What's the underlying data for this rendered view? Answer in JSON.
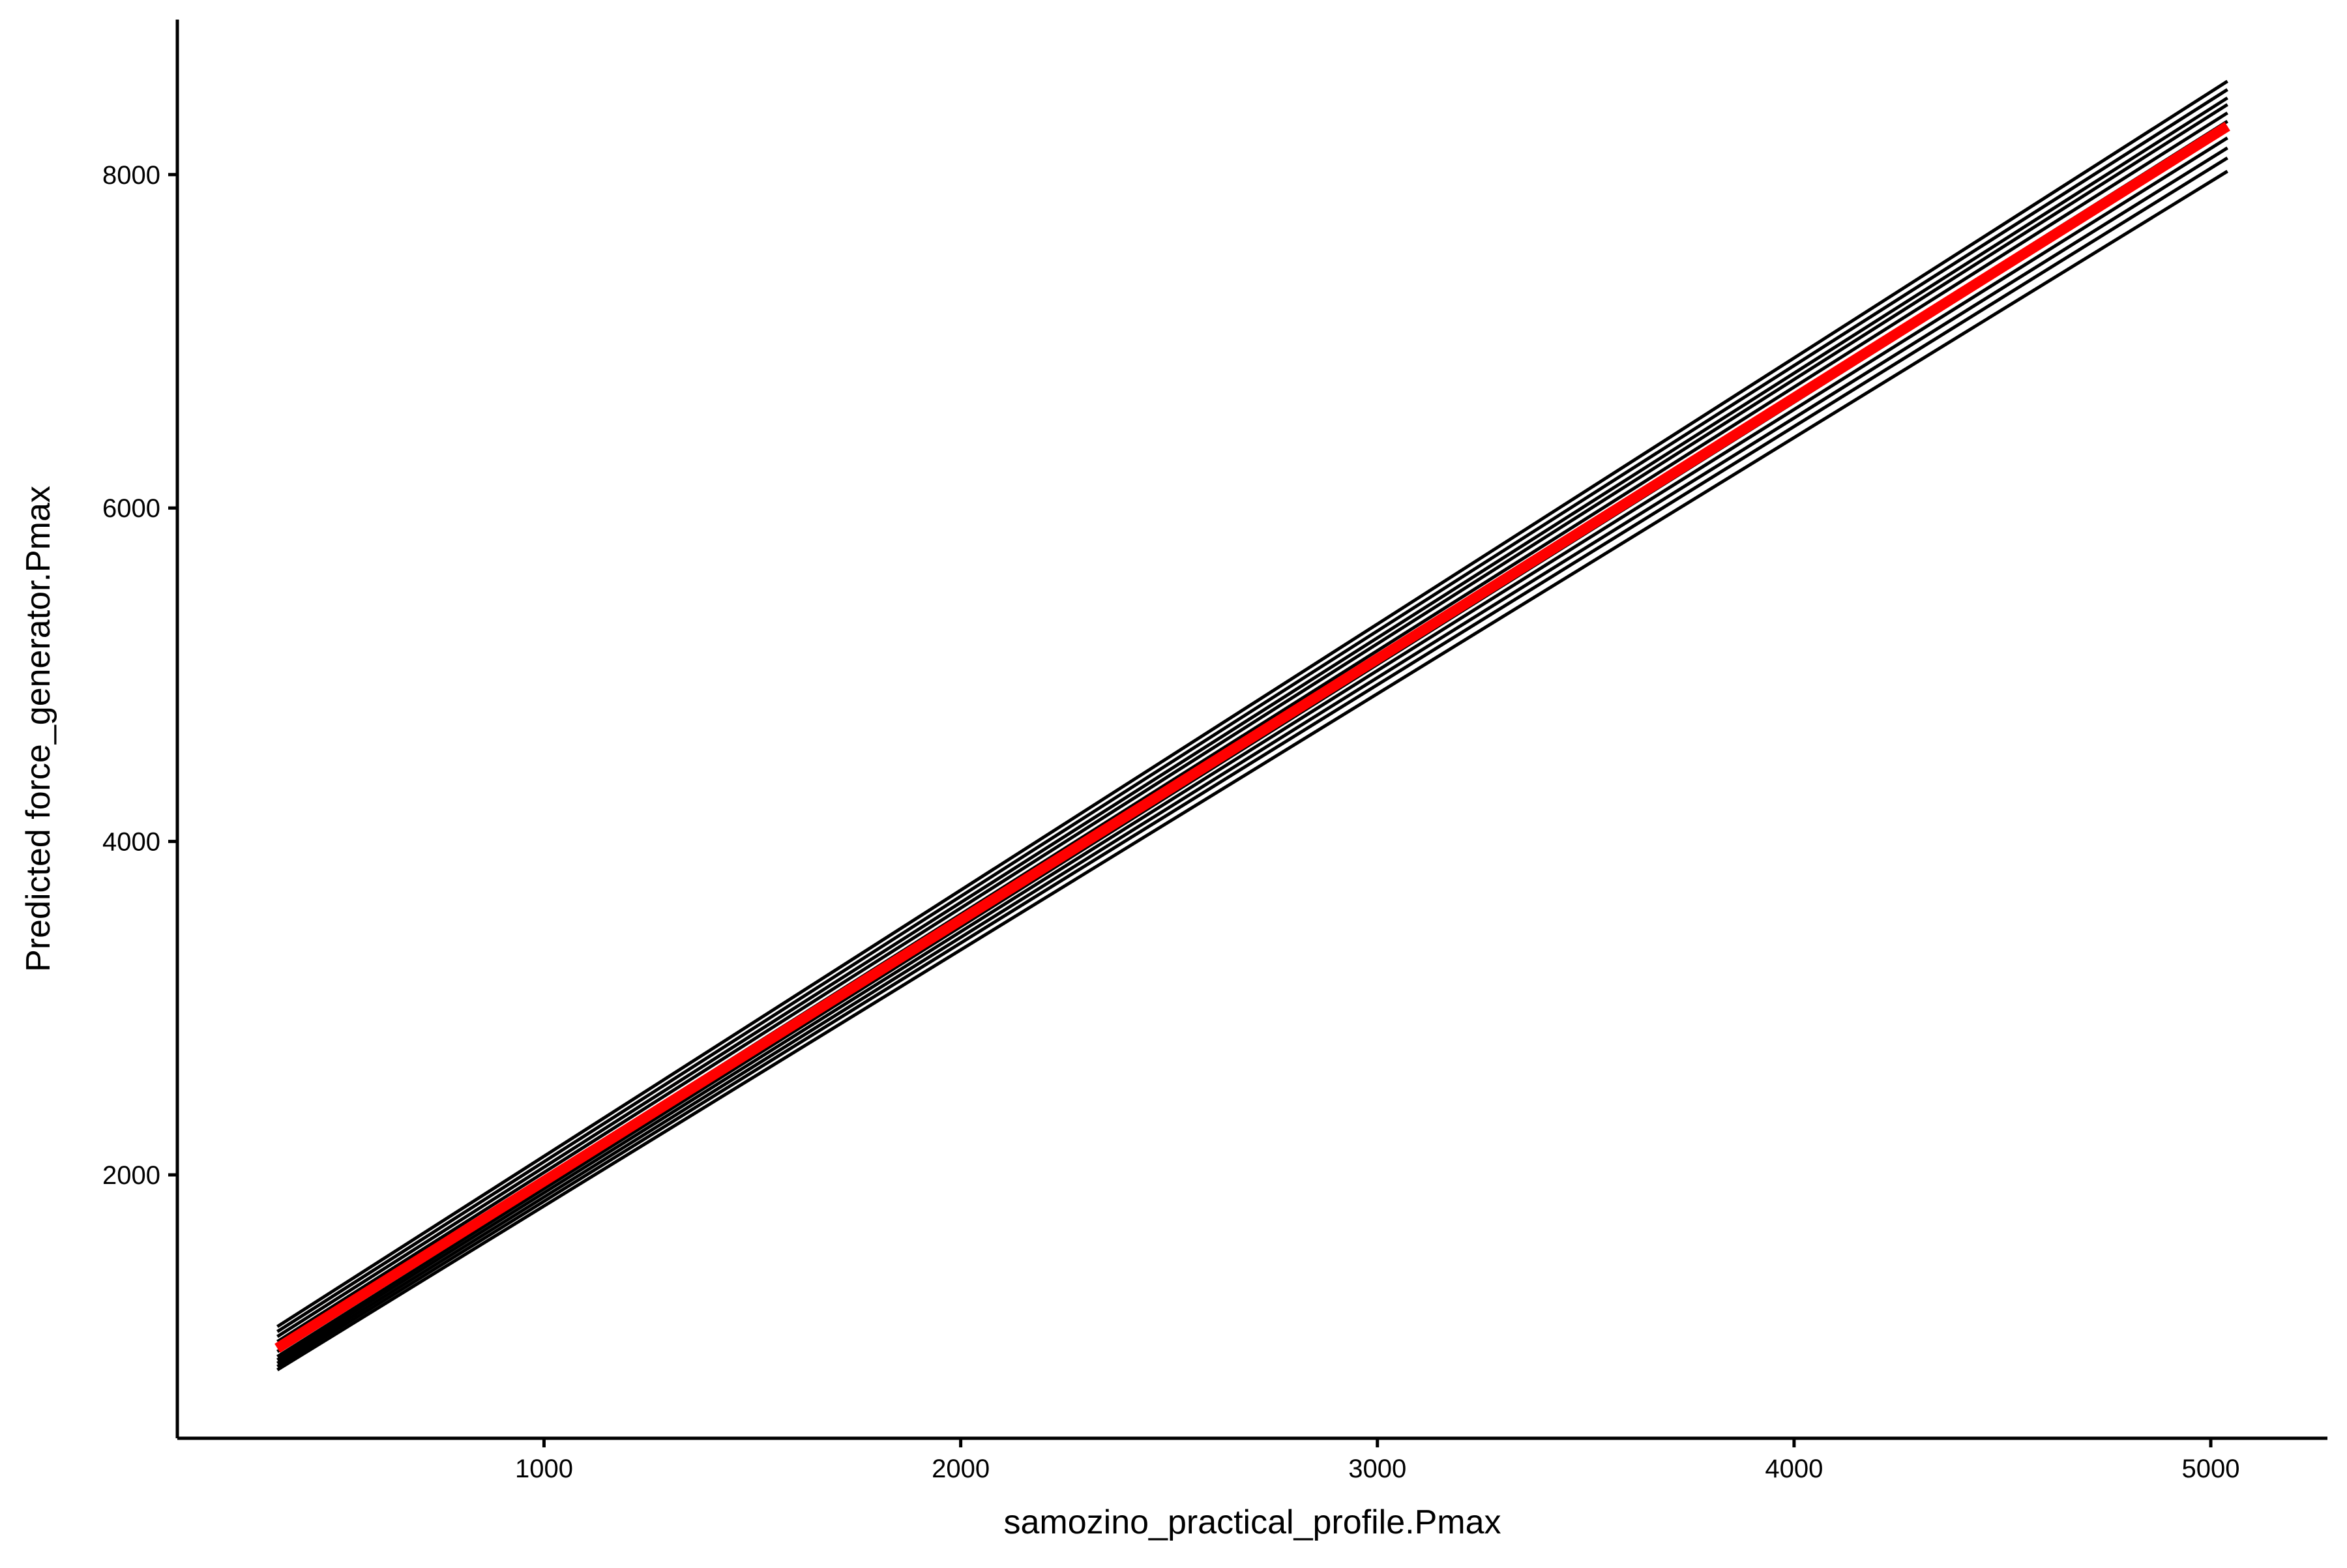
{
  "chart_data": {
    "type": "line",
    "title": "",
    "xlabel": "samozino_practical_profile.Pmax",
    "ylabel": "Predicted force_generator.Pmax",
    "xlim": [
      120,
      5280
    ],
    "ylim": [
      420,
      8930
    ],
    "x_ticks": [
      "1000",
      "2000",
      "3000",
      "4000",
      "5000"
    ],
    "y_ticks": [
      "2000",
      "4000",
      "6000",
      "8000"
    ],
    "grid": false,
    "legend": "none",
    "x": [
      360,
      5040
    ],
    "series": [
      {
        "color": "#000000",
        "values": [
          1090,
          8560
        ]
      },
      {
        "color": "#000000",
        "values": [
          1060,
          8510
        ]
      },
      {
        "color": "#000000",
        "values": [
          1030,
          8460
        ]
      },
      {
        "color": "#000000",
        "values": [
          1000,
          8420
        ]
      },
      {
        "color": "#000000",
        "values": [
          970,
          8370
        ]
      },
      {
        "color": "#000000",
        "values": [
          940,
          8320
        ]
      },
      {
        "color": "#000000",
        "values": [
          910,
          8270
        ]
      },
      {
        "color": "#000000",
        "values": [
          890,
          8220
        ]
      },
      {
        "color": "#000000",
        "values": [
          870,
          8160
        ]
      },
      {
        "color": "#000000",
        "values": [
          850,
          8100
        ]
      },
      {
        "color": "#000000",
        "values": [
          830,
          8020
        ]
      },
      {
        "color": "#ff0000",
        "values": [
          960,
          8290
        ]
      }
    ],
    "colors": {
      "background": "#ffffff",
      "axis": "#000000",
      "mean_line": "#ff0000",
      "lines": "#000000"
    }
  }
}
